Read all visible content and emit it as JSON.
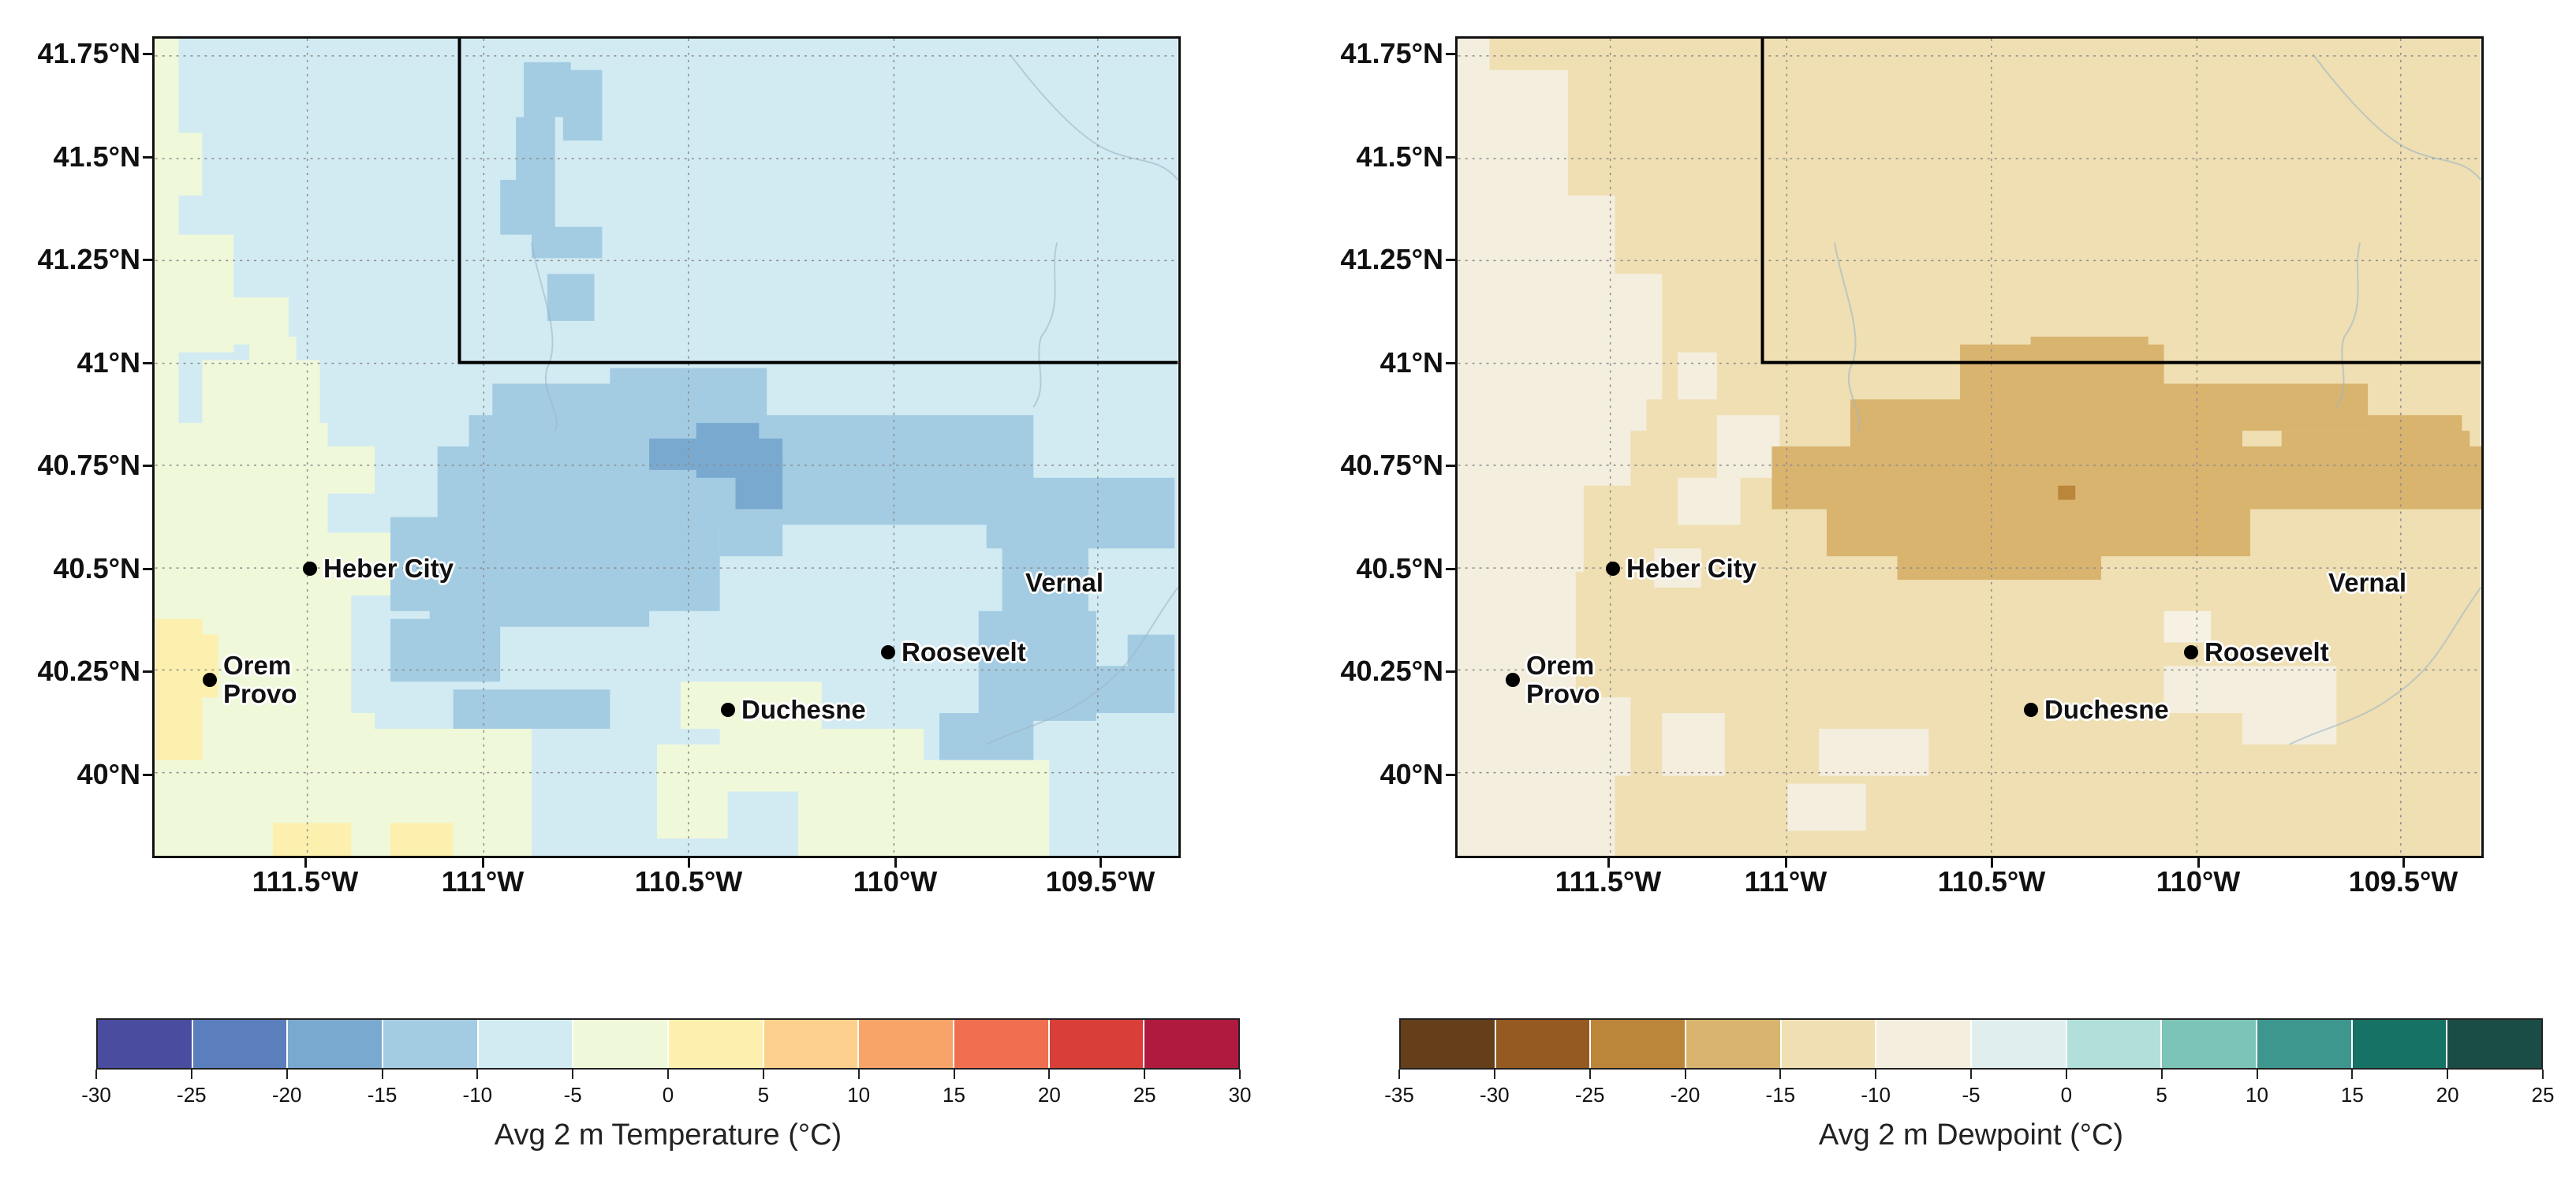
{
  "lat_labels": [
    "41.75°N",
    "41.5°N",
    "41.25°N",
    "41°N",
    "40.75°N",
    "40.5°N",
    "40.25°N",
    "40°N"
  ],
  "lon_labels": [
    "111.5°W",
    "111°W",
    "110.5°W",
    "110°W",
    "109.5°W"
  ],
  "cities": [
    {
      "name": "Heber City",
      "dot": true
    },
    {
      "name": "Orem",
      "dot": true
    },
    {
      "name": "Provo",
      "dot": false
    },
    {
      "name": "Roosevelt",
      "dot": true
    },
    {
      "name": "Duchesne",
      "dot": true
    },
    {
      "name": "Vernal",
      "dot": false
    }
  ],
  "panels": [
    {
      "variable": "Avg 2 m Temperature",
      "colorbar_title": "Avg 2 m Temperature (°C)",
      "colorbar_ticks": [
        "-30",
        "-25",
        "-20",
        "-15",
        "-10",
        "-5",
        "0",
        "5",
        "10",
        "15",
        "20",
        "25",
        "30"
      ],
      "colorbar_colors": [
        "#4a4ca0",
        "#5b7fbd",
        "#7aa9d0",
        "#a3cce3",
        "#d2ebf2",
        "#f0f8da",
        "#fdf0ae",
        "#fcd08c",
        "#f8a468",
        "#ef6f50",
        "#d93e38",
        "#b01a3f"
      ],
      "background_color": "#d2ebf2",
      "feature_colors": [
        "#a3cce3",
        "#f0f8da",
        "#fdf0ae",
        "#7aa9d0"
      ]
    },
    {
      "variable": "Avg 2 m Dewpoint",
      "colorbar_title": "Avg 2 m Dewpoint (°C)",
      "colorbar_ticks": [
        "-35",
        "-30",
        "-25",
        "-20",
        "-15",
        "-10",
        "-5",
        "0",
        "5",
        "10",
        "15",
        "20",
        "25"
      ],
      "colorbar_colors": [
        "#653f1a",
        "#955a22",
        "#bb853a",
        "#d9b46f",
        "#efdfb2",
        "#f4eedf",
        "#e0efee",
        "#b1e0da",
        "#7cc4b8",
        "#3e978f",
        "#177266",
        "#1a4d45"
      ],
      "background_color": "#efdfb2",
      "feature_colors": [
        "#d9b46f",
        "#f4eedf",
        "#bb853a"
      ]
    }
  ]
}
